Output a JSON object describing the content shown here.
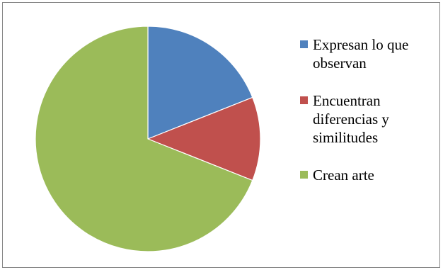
{
  "chart_data": {
    "type": "pie",
    "title": "",
    "categories": [
      "Expresan lo que observan",
      "Encuentran diferencias y similitudes",
      "Crean arte"
    ],
    "values": [
      19,
      12,
      69
    ],
    "colors": [
      "#4F81BD",
      "#C0504D",
      "#9BBB59"
    ],
    "start_angle_deg": 0,
    "direction": "clockwise",
    "legend_position": "right"
  },
  "legend": {
    "items": [
      {
        "label": "Expresan lo que observan",
        "color": "#4F81BD"
      },
      {
        "label": "Encuentran diferencias y similitudes",
        "color": "#C0504D"
      },
      {
        "label": "Crean arte",
        "color": "#9BBB59"
      }
    ]
  }
}
